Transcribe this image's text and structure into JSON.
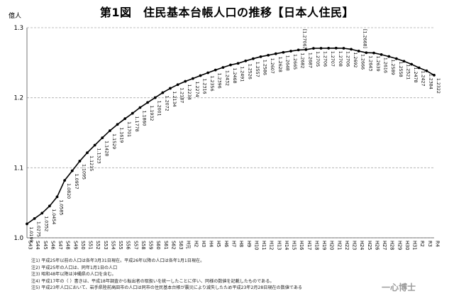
{
  "title": "第1図　住民基本台帳人口の推移【日本人住民】",
  "watermark": "一心博士",
  "notes": [
    "注1) 平成25年以前の人口は各年3月31日現在。平成26年以降の人口は各年1月1日現在。",
    "注2) 平成25年の人口は、同年1月1日の人口",
    "注3) 昭和48年以降は沖縄県の人口を含む。",
    "注4) 平成17年の（ ）書きは、平成18年調査から転出者の取扱いを統一したことに伴い、同様の数値を記載したものである。",
    "注5) 平成23年人口において、岩手県陸前高田市の人口は同市の住民基本台帳が震災により滅失したため平成23年2月28日現在の数値である"
  ],
  "chart_data": {
    "type": "line",
    "title": "第1図　住民基本台帳人口の推移【日本人住民】",
    "ylabel": "億人",
    "xlabel": "",
    "ylim": [
      1.0,
      1.3
    ],
    "yticks": [
      "1.0",
      "1.1",
      "1.2",
      "1.3"
    ],
    "grid": "horizontal dashed",
    "categories": [
      "S43",
      "S44",
      "S45",
      "S46",
      "S47",
      "S48",
      "S49",
      "S50",
      "S51",
      "S52",
      "S53",
      "S54",
      "S55",
      "S56",
      "S57",
      "S58",
      "S59",
      "S60",
      "S61",
      "S62",
      "S63",
      "H元",
      "H2",
      "H3",
      "H4",
      "H5",
      "H6",
      "H7",
      "H8",
      "H9",
      "H10",
      "H11",
      "H12",
      "H13",
      "H14",
      "H15",
      "H16",
      "H17",
      "H18",
      "H19",
      "H20",
      "H21",
      "H22",
      "H23",
      "H24",
      "H25",
      "H26",
      "H27",
      "H28",
      "H29",
      "H30",
      "H31",
      "R2",
      "R3",
      "R4"
    ],
    "values": [
      1.0199,
      1.0275,
      1.0352,
      1.0454,
      1.0585,
      1.082,
      1.0957,
      1.1095,
      1.1215,
      1.1323,
      1.1428,
      1.1529,
      1.1619,
      1.1701,
      1.1778,
      1.186,
      1.1932,
      1.2001,
      1.2072,
      1.2134,
      1.2187,
      1.2234,
      1.2274,
      1.2316,
      1.2356,
      1.2396,
      1.2432,
      1.2468,
      1.2491,
      1.2526,
      1.2557,
      1.2586,
      1.2607,
      1.2628,
      1.2648,
      1.2665,
      1.2682,
      1.2687,
      1.2705,
      1.2706,
      1.2707,
      1.2708,
      1.2706,
      1.2692,
      1.2666,
      1.2643,
      1.2639,
      1.2616,
      1.2589,
      1.2558,
      1.2521,
      1.2478,
      1.2427,
      1.2384,
      1.2322
    ],
    "data_labels": [
      "1.0199",
      "1.0275",
      "1.0352",
      "1.0454",
      "1.0585",
      "1.0820",
      "1.0957",
      "1.1095",
      "1.1215",
      "1.1323",
      "1.1428",
      "1.1529",
      "1.1619",
      "1.1701",
      "1.1778",
      "1.1860",
      "1.1932",
      "1.2001",
      "1.2072",
      "1.2134",
      "1.2187",
      "1.2234",
      "1.2274",
      "1.2316",
      "1.2356",
      "1.2396",
      "1.2432",
      "1.2468",
      "1.2491",
      "1.2526",
      "1.2557",
      "1.2586",
      "1.2607",
      "1.2628",
      "1.2648",
      "1.2665",
      "1.2682",
      "1.2687",
      "1.2705",
      "1.2706",
      "1.2707",
      "1.2708",
      "1.2706",
      "1.2692",
      "1.2666",
      "1.2643",
      "1.2639",
      "1.2616",
      "1.2589",
      "1.2558",
      "1.2521",
      "1.2478",
      "1.2427",
      "1.2384",
      "1.2322"
    ],
    "bracket_annotations": [
      {
        "category": "H17",
        "label": "[1.2706]"
      },
      {
        "category": "H25",
        "label": "[1.2668]"
      }
    ],
    "line_color": "#000000",
    "grid_color": "#aaaaaa"
  }
}
